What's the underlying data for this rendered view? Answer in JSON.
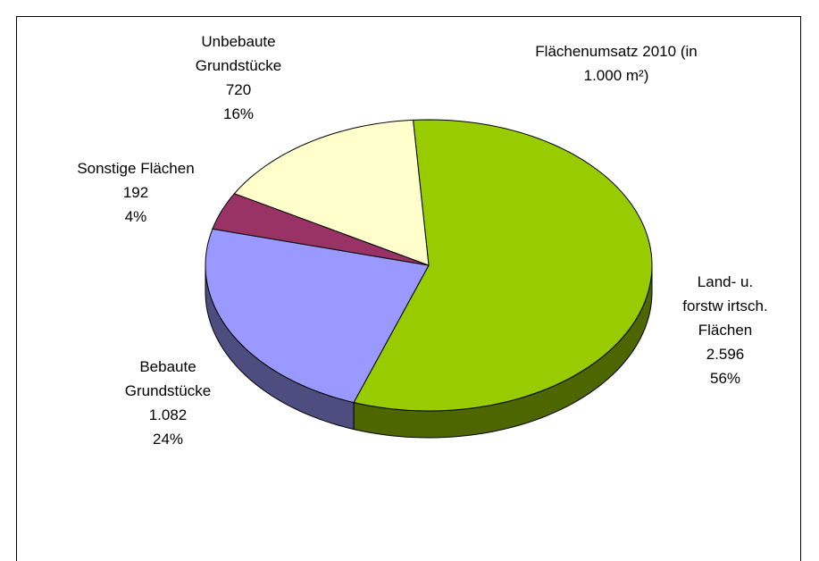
{
  "chart_data": {
    "type": "pie",
    "title": "Flächenumsatz 2010 (in 1.000 m²)",
    "categories": [
      "Land- u.\nforstw irtsch.\nFlächen",
      "Bebaute\nGrundstücke",
      "Sonstige Flächen",
      "Unbebaute\nGrundstücke"
    ],
    "values": [
      2596,
      1082,
      192,
      720
    ],
    "value_labels": [
      "2.596",
      "1.082",
      "192",
      "720"
    ],
    "percent_labels": [
      "56%",
      "24%",
      "4%",
      "16%"
    ],
    "colors": [
      "#99cc00",
      "#9999ff",
      "#993366",
      "#ffffcc"
    ],
    "side_colors": [
      "#4d6600",
      "#4d4d80",
      "#4d1a33",
      "#808066"
    ]
  }
}
